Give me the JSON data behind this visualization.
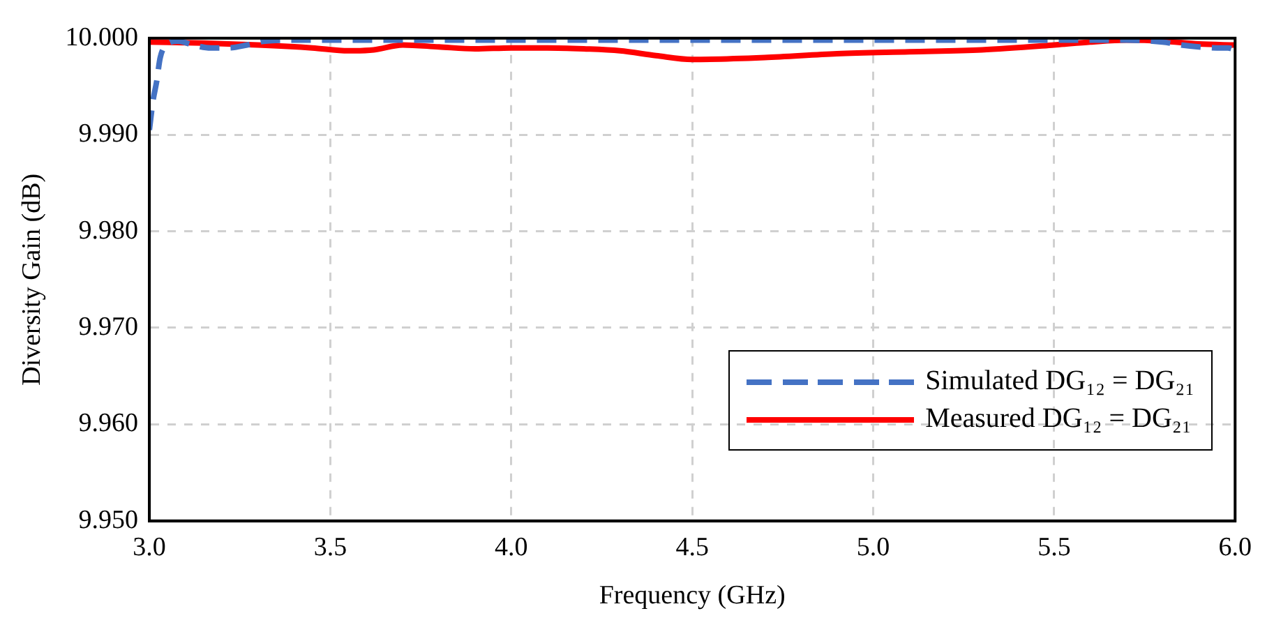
{
  "chart_data": {
    "type": "line",
    "xlabel": "Frequency (GHz)",
    "ylabel": "Diversity Gain (dB)",
    "xlim": [
      3.0,
      6.0
    ],
    "ylim": [
      9.95,
      10.0
    ],
    "xticks": [
      {
        "value": 3.0,
        "label": "3.0"
      },
      3.5,
      {
        "value": 4.0,
        "label": "4.0"
      },
      4.5,
      {
        "value": 5.0,
        "label": "5.0"
      },
      5.5,
      {
        "value": 6.0,
        "label": "6.0"
      }
    ],
    "yticks": [
      {
        "value": 9.95,
        "label": "9.950"
      },
      {
        "value": 9.96,
        "label": "9.960"
      },
      {
        "value": 9.97,
        "label": "9.970"
      },
      {
        "value": 9.98,
        "label": "9.980"
      },
      {
        "value": 9.99,
        "label": "9.990"
      },
      {
        "value": 10.0,
        "label": "10.000"
      }
    ],
    "grid": true,
    "legend": "bottom right",
    "marker": "none",
    "series": [
      {
        "name": "Simulated DG₁₂ = DG₂₁",
        "color": "#4472c4",
        "line_style": "dashed",
        "x": [
          3.0,
          3.01,
          3.02,
          3.03,
          3.05,
          3.08,
          3.12,
          3.17,
          3.22,
          3.27,
          3.32,
          3.4,
          3.6,
          3.8,
          4.0,
          4.5,
          5.0,
          5.5,
          5.7,
          5.8,
          5.85,
          5.9,
          5.95,
          5.98,
          6.0
        ],
        "values": [
          9.9905,
          9.9935,
          9.9955,
          9.998,
          9.9994,
          9.9997,
          9.9993,
          9.999,
          9.999,
          9.9993,
          9.9997,
          9.9998,
          9.9998,
          9.9998,
          9.9998,
          9.9998,
          9.9998,
          9.9998,
          9.9998,
          9.9996,
          9.9993,
          9.9991,
          9.999,
          9.999,
          9.9988
        ]
      },
      {
        "name": "Measured DG₁₂ = DG₂₁",
        "color": "#ff0000",
        "line_style": "solid",
        "x": [
          3.0,
          3.15,
          3.3,
          3.45,
          3.55,
          3.62,
          3.7,
          3.8,
          3.9,
          4.0,
          4.1,
          4.2,
          4.3,
          4.4,
          4.5,
          4.7,
          4.9,
          5.1,
          5.3,
          5.5,
          5.6,
          5.7,
          5.8,
          5.9,
          6.0
        ],
        "values": [
          9.9996,
          9.9995,
          9.9993,
          9.999,
          9.9987,
          9.9988,
          9.9993,
          9.9991,
          9.9989,
          9.999,
          9.999,
          9.9989,
          9.9987,
          9.9982,
          9.9978,
          9.998,
          9.9984,
          9.9986,
          9.9988,
          9.9993,
          9.9996,
          9.9998,
          9.9997,
          9.9994,
          9.9993
        ]
      }
    ]
  }
}
